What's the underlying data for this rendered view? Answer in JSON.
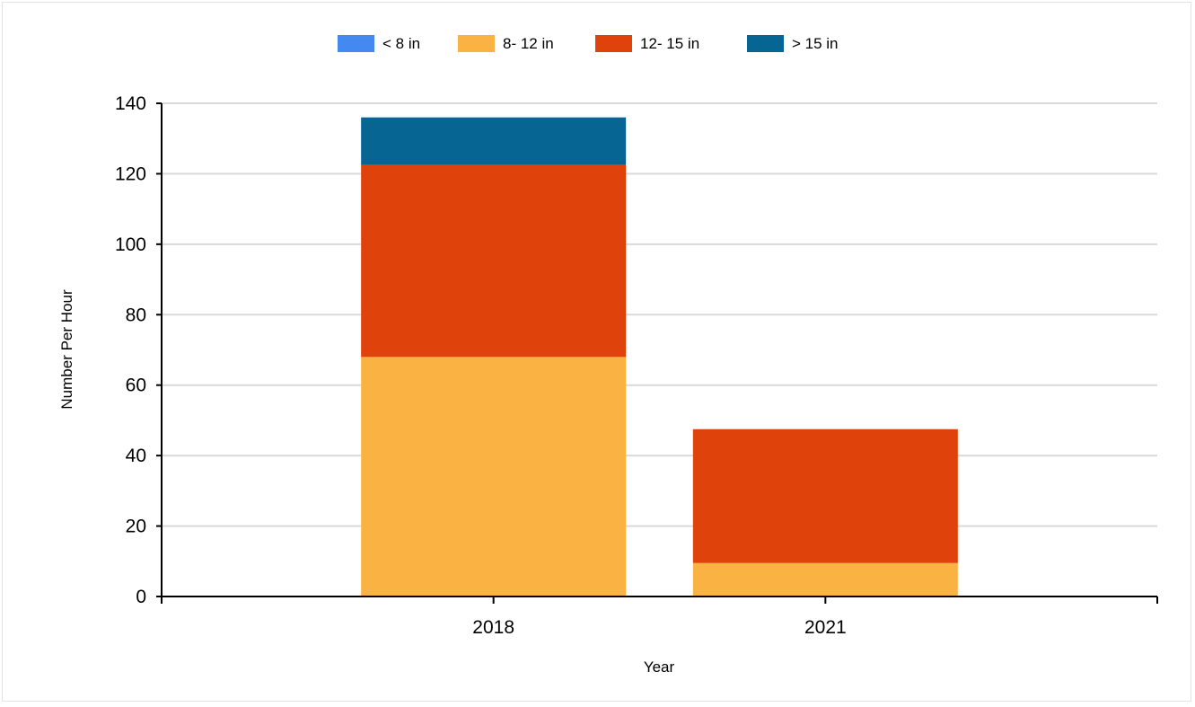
{
  "chart_data": {
    "type": "bar",
    "stacked": true,
    "categories": [
      "2018",
      "2021"
    ],
    "series": [
      {
        "name": "< 8 in",
        "color": "#4389f0",
        "values": [
          0,
          0
        ]
      },
      {
        "name": "8- 12 in",
        "color": "#fab343",
        "values": [
          68,
          9.5
        ]
      },
      {
        "name": "12- 15 in",
        "color": "#e0420b",
        "values": [
          54.5,
          38
        ]
      },
      {
        "name": "> 15 in",
        "color": "#066593",
        "values": [
          13.5,
          0
        ]
      }
    ],
    "xlabel": "Year",
    "ylabel": "Number Per Hour",
    "ylim": [
      0,
      140
    ],
    "yticks": [
      0,
      20,
      40,
      60,
      80,
      100,
      120,
      140
    ],
    "grid": true,
    "legend_position": "top"
  }
}
